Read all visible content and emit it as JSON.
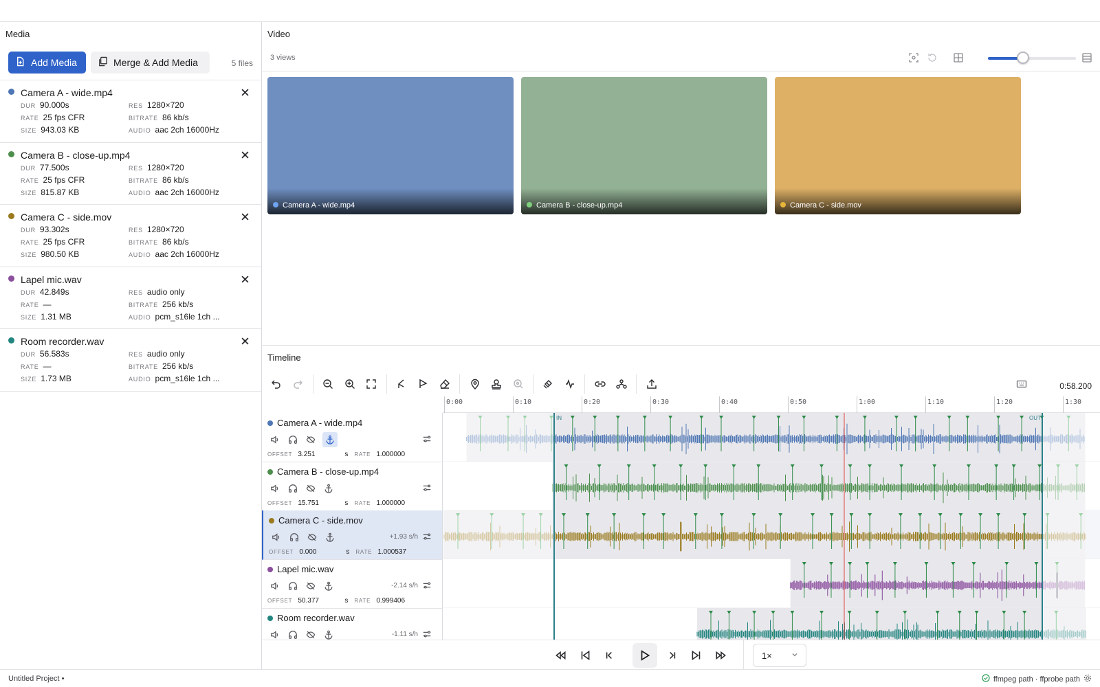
{
  "panels": {
    "media": "Media",
    "video": "Video",
    "timeline": "Timeline"
  },
  "media": {
    "add_label": "Add Media",
    "merge_label": "Merge & Add Media",
    "file_count": "5 files",
    "keys": {
      "dur": "DUR",
      "rate": "RATE",
      "size": "SIZE",
      "res": "RES",
      "bitrate": "BITRATE",
      "audio": "AUDIO"
    },
    "items": [
      {
        "name": "Camera A - wide.mp4",
        "color": "#4f77b5",
        "dur": "90.000s",
        "rate": "25 fps CFR",
        "size": "943.03 KB",
        "res": "1280×720",
        "bitrate": "86 kb/s",
        "audio": "aac 2ch 16000Hz"
      },
      {
        "name": "Camera B - close-up.mp4",
        "color": "#4e8f4e",
        "dur": "77.500s",
        "rate": "25 fps CFR",
        "size": "815.87 KB",
        "res": "1280×720",
        "bitrate": "86 kb/s",
        "audio": "aac 2ch 16000Hz"
      },
      {
        "name": "Camera C - side.mov",
        "color": "#9a7a1d",
        "dur": "93.302s",
        "rate": "25 fps CFR",
        "size": "980.50 KB",
        "res": "1280×720",
        "bitrate": "86 kb/s",
        "audio": "aac 2ch 16000Hz"
      },
      {
        "name": "Lapel mic.wav",
        "color": "#8b4f9e",
        "dur": "42.849s",
        "rate": "—",
        "size": "1.31 MB",
        "res": "audio only",
        "bitrate": "256 kb/s",
        "audio": "pcm_s16le 1ch ..."
      },
      {
        "name": "Room recorder.wav",
        "color": "#23857f",
        "dur": "56.583s",
        "rate": "—",
        "size": "1.73 MB",
        "res": "audio only",
        "bitrate": "256 kb/s",
        "audio": "pcm_s16le 1ch ..."
      }
    ]
  },
  "video": {
    "views_count": "3 views",
    "zoom_level": 0.4,
    "tiles": [
      {
        "label": "Camera A - wide.mp4",
        "bg": "#6f8fc1",
        "dot": "#6ea3f0"
      },
      {
        "label": "Camera B - close-up.mp4",
        "bg": "#93b295",
        "dot": "#7fd07c"
      },
      {
        "label": "Camera C - side.mov",
        "bg": "#ddb066",
        "dot": "#e7b43a"
      }
    ]
  },
  "timeline": {
    "timecode": "0:58.200",
    "ruler": [
      "0:00",
      "0:10",
      "0:20",
      "0:30",
      "0:40",
      "0:50",
      "1:00",
      "1:10",
      "1:20",
      "1:30"
    ],
    "in_label": "IN",
    "out_label": "OUT",
    "in_time": 16.0,
    "out_time": 87.0,
    "playhead_time": 58.2,
    "view_duration": 94.0,
    "keys": {
      "offset": "OFFSET",
      "rate": "RATE",
      "unit": "s"
    },
    "tracks": [
      {
        "name": "Camera A - wide.mp4",
        "color": "#4f77b5",
        "offset": "3.251",
        "rate": "1.000000",
        "drift": "",
        "selected": false,
        "anchored": true,
        "start": 3.251,
        "dur": 90.0
      },
      {
        "name": "Camera B - close-up.mp4",
        "color": "#4e8f4e",
        "offset": "15.751",
        "rate": "1.000000",
        "drift": "",
        "selected": false,
        "anchored": false,
        "start": 15.751,
        "dur": 77.5
      },
      {
        "name": "Camera C - side.mov",
        "color": "#9a7a1d",
        "offset": "0.000",
        "rate": "1.000537",
        "drift": "+1.93 s/h",
        "selected": true,
        "anchored": false,
        "start": 0.0,
        "dur": 93.302
      },
      {
        "name": "Lapel mic.wav",
        "color": "#8b4f9e",
        "offset": "50.377",
        "rate": "0.999406",
        "drift": "-2.14 s/h",
        "selected": false,
        "anchored": false,
        "start": 50.377,
        "dur": 42.849
      },
      {
        "name": "Room recorder.wav",
        "color": "#23857f",
        "offset": "",
        "rate": "",
        "drift": "-1.11 s/h",
        "selected": false,
        "anchored": false,
        "start": 36.8,
        "dur": 56.583
      }
    ],
    "speed": "1×"
  },
  "status": {
    "project": "Untitled Project •",
    "paths": "ffmpeg path · ffprobe path"
  }
}
